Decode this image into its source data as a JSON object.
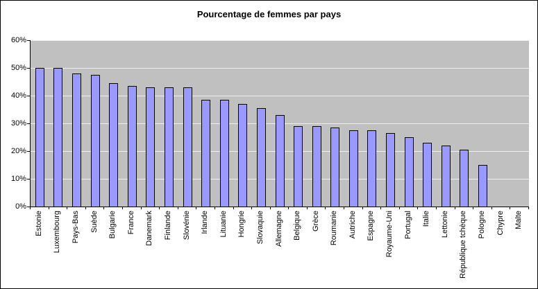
{
  "chart_data": {
    "type": "bar",
    "title": "Pourcentage de femmes par pays",
    "categories": [
      "Estonie",
      "Luxembourg",
      "Pays-Bas",
      "Suède",
      "Bulgarie",
      "France",
      "Danemark",
      "Finlande",
      "Slovénie",
      "Irlande",
      "Lituanie",
      "Hongrie",
      "Slovaquie",
      "Allemagne",
      "Belgique",
      "Grèce",
      "Roumanie",
      "Autriche",
      "Espagne",
      "Royaume-Uni",
      "Portugal",
      "Italie",
      "Lettonie",
      "République tchèque",
      "Pologne",
      "Chypre",
      "Malte"
    ],
    "values": [
      50,
      49.9,
      48,
      47.5,
      44.5,
      43.5,
      43,
      43,
      43,
      38.5,
      38.5,
      37,
      35.5,
      33,
      29,
      29,
      28.5,
      27.5,
      27.5,
      26.5,
      25,
      23,
      22,
      20.5,
      15,
      0,
      0
    ],
    "xlabel": "",
    "ylabel": "",
    "ylim": [
      0,
      60
    ],
    "ytick_step": 10,
    "ytick_labels": [
      "0%",
      "10%",
      "20%",
      "30%",
      "40%",
      "50%",
      "60%"
    ],
    "grid": true,
    "legend": false,
    "colors": {
      "bar_fill": "#9999FF",
      "bar_border": "#000000",
      "plot_bg": "#C0C0C0",
      "gridline": "#EFEFEF",
      "chart_bg": "#FFFFFF",
      "axis": "#000000"
    }
  }
}
